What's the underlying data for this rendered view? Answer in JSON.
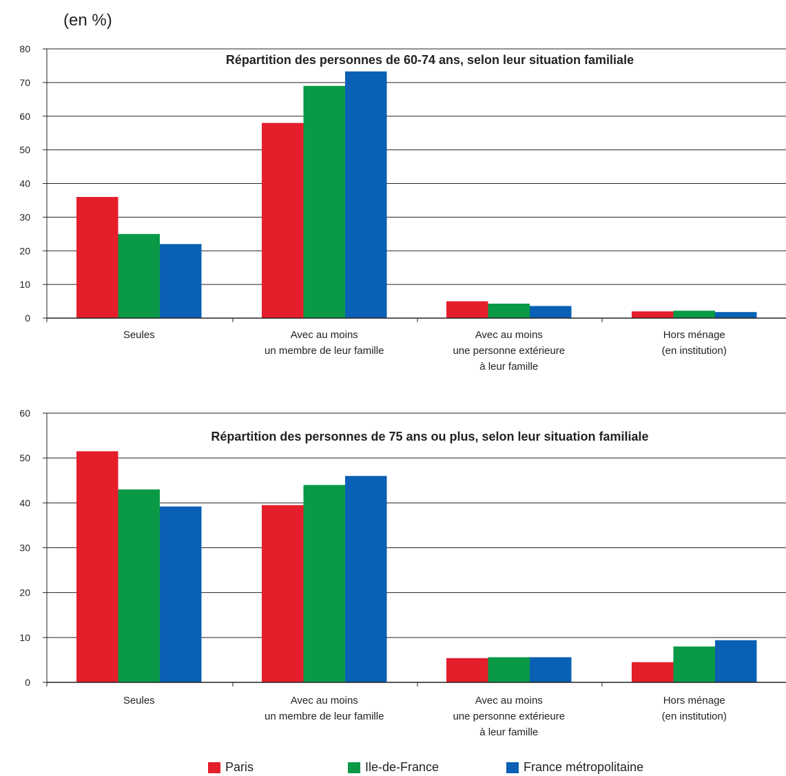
{
  "unit_label": "(en %)",
  "legend": [
    {
      "label": "Paris",
      "color": "#e41e2b"
    },
    {
      "label": "Ile-de-France",
      "color": "#0a9a47"
    },
    {
      "label": "France métropolitaine",
      "color": "#0a60b4"
    }
  ],
  "chart_data": [
    {
      "type": "bar",
      "title": "Répartition des personnes de 60-74 ans, selon leur situation familiale",
      "categories": [
        [
          "Seules"
        ],
        [
          "Avec au moins",
          "un membre de leur famille"
        ],
        [
          "Avec au moins",
          "une personne extérieure",
          "à leur famille"
        ],
        [
          "Hors ménage",
          "(en institution)"
        ]
      ],
      "series": [
        {
          "name": "Paris",
          "values": [
            36,
            58,
            5,
            2
          ]
        },
        {
          "name": "Ile-de-France",
          "values": [
            25,
            69,
            4.3,
            2.2
          ]
        },
        {
          "name": "France métropolitaine",
          "values": [
            22,
            73.3,
            3.6,
            1.8
          ]
        }
      ],
      "ylim": [
        0,
        80
      ],
      "yticks": [
        0,
        10,
        20,
        30,
        40,
        50,
        60,
        70,
        80
      ],
      "grid": true
    },
    {
      "type": "bar",
      "title": "Répartition des personnes de 75 ans ou plus, selon leur situation familiale",
      "categories": [
        [
          "Seules"
        ],
        [
          "Avec au moins",
          "un membre de leur famille"
        ],
        [
          "Avec au moins",
          "une personne extérieure",
          "à leur famille"
        ],
        [
          "Hors ménage",
          "(en institution)"
        ]
      ],
      "series": [
        {
          "name": "Paris",
          "values": [
            51.5,
            39.5,
            5.4,
            4.5
          ]
        },
        {
          "name": "Ile-de-France",
          "values": [
            43,
            44,
            5.6,
            8
          ]
        },
        {
          "name": "France métropolitaine",
          "values": [
            39.2,
            46,
            5.6,
            9.4
          ]
        }
      ],
      "ylim": [
        0,
        60
      ],
      "yticks": [
        0,
        10,
        20,
        30,
        40,
        50,
        60
      ],
      "grid": true
    }
  ]
}
